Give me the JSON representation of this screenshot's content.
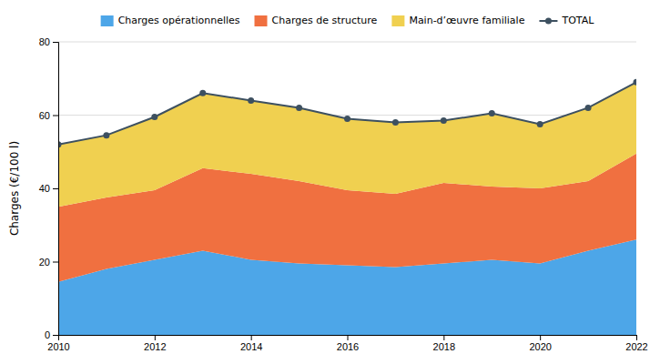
{
  "chart_data": {
    "type": "area",
    "stacked": true,
    "ylabel": "Charges (€/100 l)",
    "x": [
      2010,
      2011,
      2012,
      2013,
      2014,
      2015,
      2016,
      2017,
      2018,
      2019,
      2020,
      2021,
      2022
    ],
    "xlim": [
      2010,
      2022
    ],
    "xticks": [
      2010,
      2012,
      2014,
      2016,
      2018,
      2020,
      2022
    ],
    "ylim": [
      0,
      80
    ],
    "yticks": [
      0,
      20,
      40,
      60,
      80
    ],
    "grid": true,
    "legend": "top",
    "series": [
      {
        "name": "Charges opérationnelles",
        "color": "#4da6e8",
        "type": "area",
        "values": [
          14.5,
          18.0,
          20.5,
          23.0,
          20.5,
          19.5,
          19.0,
          18.5,
          19.5,
          20.5,
          19.5,
          23.0,
          26.0
        ]
      },
      {
        "name": "Charges de structure",
        "color": "#f07040",
        "type": "area",
        "values": [
          20.5,
          19.5,
          19.0,
          22.5,
          23.5,
          22.5,
          20.5,
          20.0,
          22.0,
          20.0,
          20.5,
          19.0,
          23.5
        ]
      },
      {
        "name": "Main-d’œuvre familiale",
        "color": "#f0d050",
        "type": "area",
        "values": [
          17.0,
          17.0,
          20.0,
          20.5,
          20.0,
          20.0,
          19.5,
          19.5,
          17.0,
          20.0,
          17.5,
          20.0,
          19.5
        ]
      },
      {
        "name": "TOTAL",
        "color": "#3d5060",
        "type": "line",
        "marker": "circle",
        "values": [
          52.0,
          54.5,
          59.5,
          66.0,
          64.0,
          62.0,
          59.0,
          58.0,
          58.5,
          60.5,
          57.5,
          62.0,
          69.0
        ]
      }
    ]
  }
}
